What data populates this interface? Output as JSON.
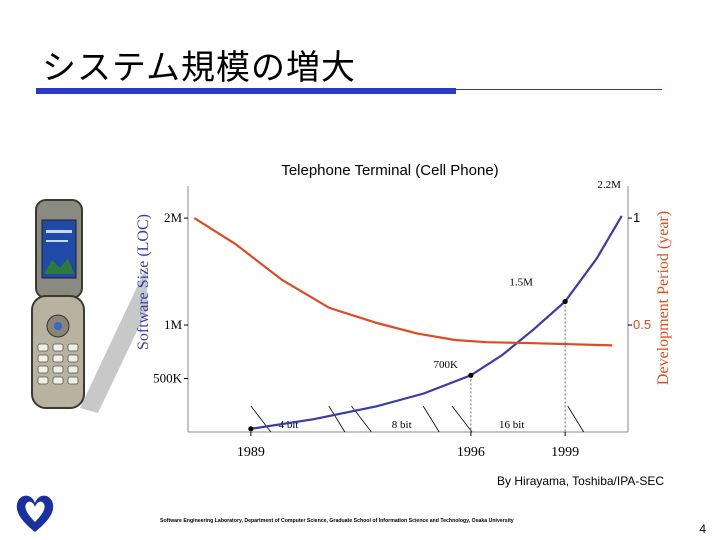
{
  "slide": {
    "title": "システム規模の増大",
    "credit": "By Hirayama, Toshiba/IPA-SEC",
    "footer": "Software Engineering Laboratory, Department of Computer Science, Graduate School of Information Science and Technology, Osaka University",
    "page_number": "4"
  },
  "colors": {
    "title_rule": "#2a39c8",
    "size_line": "#3a3aa8",
    "period_line": "#e04a20",
    "axis": "#000000",
    "logo": "#1a2fa0"
  },
  "chart_data": {
    "type": "line",
    "title": "Telephone Terminal (Cell Phone)",
    "ylabel": "Software Size (LOC)",
    "y2label": "Development Period (year)",
    "xlim": [
      1987,
      2001
    ],
    "ylim": [
      0,
      2.3
    ],
    "y2lim": [
      0,
      1.15
    ],
    "x_ticks": [
      "1989",
      "1996",
      "1999"
    ],
    "y_ticks": [
      {
        "label": "500K",
        "value": 0.5
      },
      {
        "label": "1M",
        "value": 1.0
      },
      {
        "label": "2M",
        "value": 2.0
      }
    ],
    "y2_ticks": [
      {
        "label": "0.5",
        "value": 0.5,
        "color": "#e04a20"
      },
      {
        "label": "1",
        "value": 1.0,
        "color": "#000000"
      }
    ],
    "series": [
      {
        "axis": "left",
        "color": "#3a3aa8",
        "points": [
          [
            1989,
            0.03
          ],
          [
            1991,
            0.12
          ],
          [
            1993,
            0.24
          ],
          [
            1994.5,
            0.36
          ],
          [
            1996,
            0.53
          ],
          [
            1997,
            0.72
          ],
          [
            1998,
            0.96
          ],
          [
            1999,
            1.22
          ],
          [
            2000,
            1.62
          ],
          [
            2000.8,
            2.02
          ]
        ]
      },
      {
        "axis": "right",
        "color": "#e04a20",
        "points": [
          [
            1987.2,
            1.0
          ],
          [
            1988.5,
            0.88
          ],
          [
            1990,
            0.71
          ],
          [
            1991.5,
            0.58
          ],
          [
            1993,
            0.51
          ],
          [
            1994.3,
            0.46
          ],
          [
            1995.5,
            0.43
          ],
          [
            1996.5,
            0.42
          ],
          [
            1998,
            0.415
          ],
          [
            2000.5,
            0.405
          ]
        ]
      }
    ],
    "markers": [
      {
        "x": 1989,
        "y": 0.03
      },
      {
        "x": 1996,
        "y": 0.53
      },
      {
        "x": 1999,
        "y": 1.22
      }
    ],
    "annotations": [
      {
        "text": "700K",
        "x": 1995.2,
        "y": 0.6
      },
      {
        "text": "1.5M",
        "x": 1997.6,
        "y": 1.37
      },
      {
        "text": "2.2M",
        "x": 2000.4,
        "y": 2.28
      }
    ],
    "bit_labels": [
      {
        "text": "4 bit",
        "x": 1990.2
      },
      {
        "text": "8 bit",
        "x": 1993.8
      },
      {
        "text": "16 bit",
        "x": 1997.3
      }
    ],
    "grid": false
  }
}
